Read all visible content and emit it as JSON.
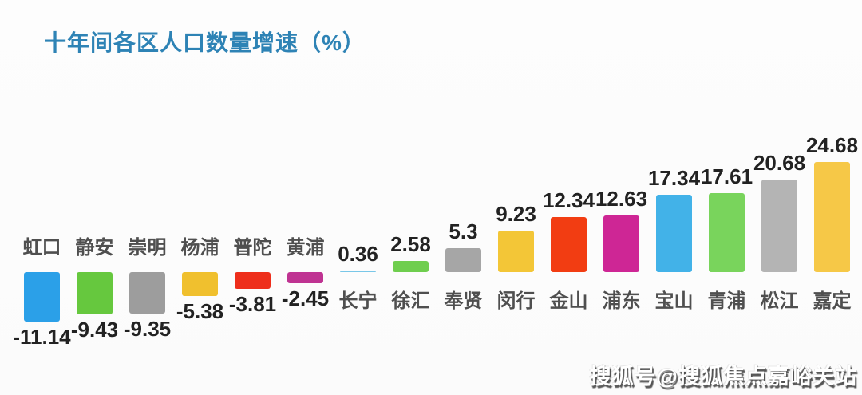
{
  "title": "十年间各区人口数量增速（%）",
  "watermark": "搜狐号@搜狐焦点嘉峪关站",
  "colors": {
    "title": "#2e83b5",
    "value_label": "#222222",
    "district_label": "#4f4f4f",
    "background": "#fcfcfc"
  },
  "chart_data": {
    "type": "bar",
    "title": "十年间各区人口数量增速（%）",
    "xlabel": "",
    "ylabel": "增速（%）",
    "ylim": [
      -12,
      26
    ],
    "grid": false,
    "legend": "none",
    "value_labels_shown": true,
    "categories": [
      "虹口",
      "静安",
      "崇明",
      "杨浦",
      "普陀",
      "黄浦",
      "长宁",
      "徐汇",
      "奉贤",
      "闵行",
      "金山",
      "浦东",
      "宝山",
      "青浦",
      "松江",
      "嘉定"
    ],
    "values": [
      -11.14,
      -9.43,
      -9.35,
      -5.38,
      -3.81,
      -2.45,
      0.36,
      2.58,
      5.3,
      9.23,
      12.34,
      12.63,
      17.34,
      17.61,
      20.68,
      24.68
    ],
    "value_labels": [
      "-11.14",
      "-9.43",
      "-9.35",
      "-5.38",
      "-3.81",
      "-2.45",
      "0.36",
      "2.58",
      "5.3",
      "9.23",
      "12.34",
      "12.63",
      "17.34",
      "17.61",
      "20.68",
      "24.68"
    ],
    "bar_colors": [
      "#2ba0e8",
      "#66c83e",
      "#9d9d9d",
      "#f0c02e",
      "#ee2e1b",
      "#bf3392",
      "#79c7e8",
      "#6fce4e",
      "#a6a6a6",
      "#f3c637",
      "#f23d12",
      "#ce2695",
      "#42b2e8",
      "#79d45c",
      "#b4b4b4",
      "#f6c847"
    ]
  }
}
